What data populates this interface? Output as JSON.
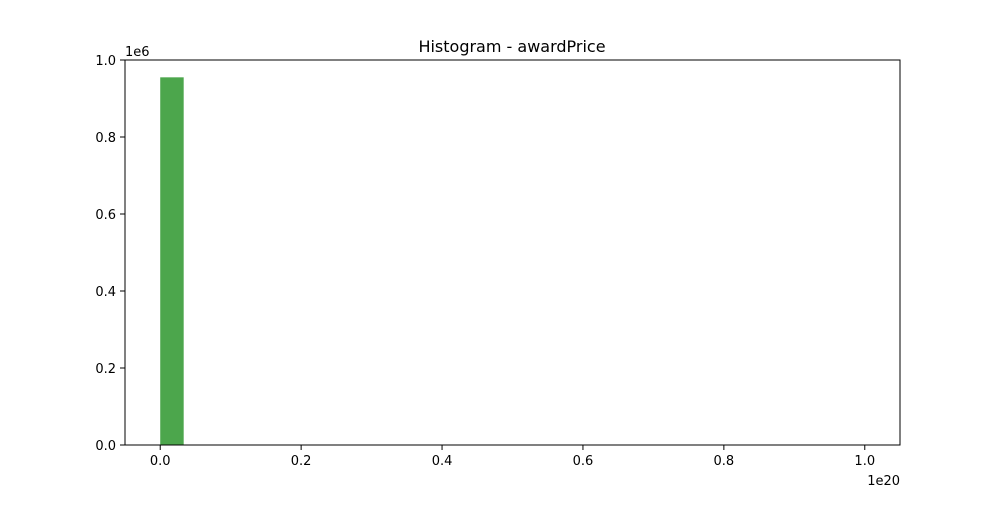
{
  "chart_data": {
    "type": "bar",
    "title": "Histogram - awardPrice",
    "xlabel": "",
    "ylabel": "",
    "x_offset_label": "1e20",
    "y_offset_label": "1e6",
    "x_ticks": [
      "0.0",
      "0.2",
      "0.4",
      "0.6",
      "0.8",
      "1.0"
    ],
    "y_ticks": [
      "0.0",
      "0.2",
      "0.4",
      "0.6",
      "0.8",
      "1.0"
    ],
    "xlim": [
      -0.05,
      1.05
    ],
    "ylim": [
      0,
      1.0
    ],
    "grid": false,
    "bar_color": "#4ca64c",
    "bins": [
      {
        "x0": 0.0,
        "x1": 0.0333,
        "value": 0.955
      }
    ]
  }
}
